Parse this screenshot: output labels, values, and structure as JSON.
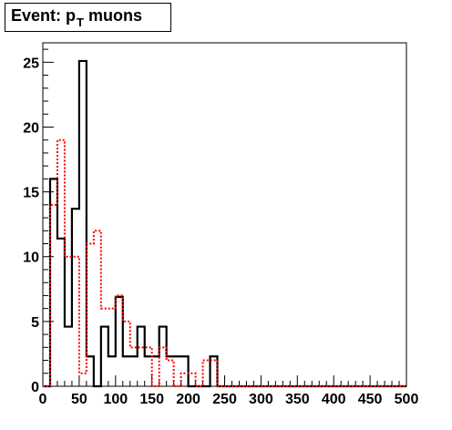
{
  "title": {
    "prefix": "Event: p",
    "subscript": "T",
    "suffix": " muons"
  },
  "chart_data": {
    "type": "histogram",
    "title": "Event: pT muons",
    "xlabel": "",
    "ylabel": "",
    "xlim": [
      0,
      500
    ],
    "ylim": [
      0,
      26.5
    ],
    "grid": false,
    "legend": "none",
    "bin_width": 10,
    "x_ticks": [
      "0",
      "50",
      "100",
      "150",
      "200",
      "250",
      "300",
      "350",
      "400",
      "450",
      "500"
    ],
    "y_ticks": [
      "0",
      "5",
      "10",
      "15",
      "20",
      "25"
    ],
    "series": [
      {
        "style": "solid",
        "color": "#000000",
        "bins": [
          {
            "x0": 0,
            "x1": 10,
            "y": 0
          },
          {
            "x0": 10,
            "x1": 20,
            "y": 16
          },
          {
            "x0": 20,
            "x1": 30,
            "y": 11.4
          },
          {
            "x0": 30,
            "x1": 40,
            "y": 4.6
          },
          {
            "x0": 40,
            "x1": 50,
            "y": 13.7
          },
          {
            "x0": 50,
            "x1": 60,
            "y": 25.1
          },
          {
            "x0": 60,
            "x1": 70,
            "y": 2.3
          },
          {
            "x0": 70,
            "x1": 80,
            "y": 0
          },
          {
            "x0": 80,
            "x1": 90,
            "y": 4.6
          },
          {
            "x0": 90,
            "x1": 100,
            "y": 2.3
          },
          {
            "x0": 100,
            "x1": 110,
            "y": 6.9
          },
          {
            "x0": 110,
            "x1": 120,
            "y": 2.3
          },
          {
            "x0": 120,
            "x1": 130,
            "y": 2.3
          },
          {
            "x0": 130,
            "x1": 140,
            "y": 4.6
          },
          {
            "x0": 140,
            "x1": 150,
            "y": 2.3
          },
          {
            "x0": 150,
            "x1": 160,
            "y": 2.3
          },
          {
            "x0": 160,
            "x1": 170,
            "y": 4.6
          },
          {
            "x0": 170,
            "x1": 180,
            "y": 2.3
          },
          {
            "x0": 180,
            "x1": 190,
            "y": 2.3
          },
          {
            "x0": 190,
            "x1": 200,
            "y": 2.3
          },
          {
            "x0": 200,
            "x1": 210,
            "y": 0
          },
          {
            "x0": 210,
            "x1": 220,
            "y": 0
          },
          {
            "x0": 220,
            "x1": 230,
            "y": 0
          },
          {
            "x0": 230,
            "x1": 240,
            "y": 2.3
          },
          {
            "x0": 240,
            "x1": 500,
            "y": 0
          }
        ]
      },
      {
        "style": "dotted",
        "color": "#ff0000",
        "bins": [
          {
            "x0": 0,
            "x1": 10,
            "y": 0
          },
          {
            "x0": 10,
            "x1": 20,
            "y": 14
          },
          {
            "x0": 20,
            "x1": 30,
            "y": 19
          },
          {
            "x0": 30,
            "x1": 40,
            "y": 10
          },
          {
            "x0": 40,
            "x1": 50,
            "y": 10
          },
          {
            "x0": 50,
            "x1": 60,
            "y": 1
          },
          {
            "x0": 60,
            "x1": 70,
            "y": 11
          },
          {
            "x0": 70,
            "x1": 80,
            "y": 12
          },
          {
            "x0": 80,
            "x1": 90,
            "y": 6
          },
          {
            "x0": 90,
            "x1": 100,
            "y": 6
          },
          {
            "x0": 100,
            "x1": 110,
            "y": 7
          },
          {
            "x0": 110,
            "x1": 120,
            "y": 5
          },
          {
            "x0": 120,
            "x1": 130,
            "y": 3
          },
          {
            "x0": 130,
            "x1": 140,
            "y": 3
          },
          {
            "x0": 140,
            "x1": 150,
            "y": 3
          },
          {
            "x0": 150,
            "x1": 160,
            "y": 0
          },
          {
            "x0": 160,
            "x1": 170,
            "y": 3
          },
          {
            "x0": 170,
            "x1": 180,
            "y": 2
          },
          {
            "x0": 180,
            "x1": 190,
            "y": 0
          },
          {
            "x0": 190,
            "x1": 200,
            "y": 1
          },
          {
            "x0": 200,
            "x1": 210,
            "y": 1
          },
          {
            "x0": 210,
            "x1": 220,
            "y": 0
          },
          {
            "x0": 220,
            "x1": 230,
            "y": 2
          },
          {
            "x0": 230,
            "x1": 240,
            "y": 2
          },
          {
            "x0": 240,
            "x1": 500,
            "y": 0
          }
        ]
      }
    ]
  }
}
